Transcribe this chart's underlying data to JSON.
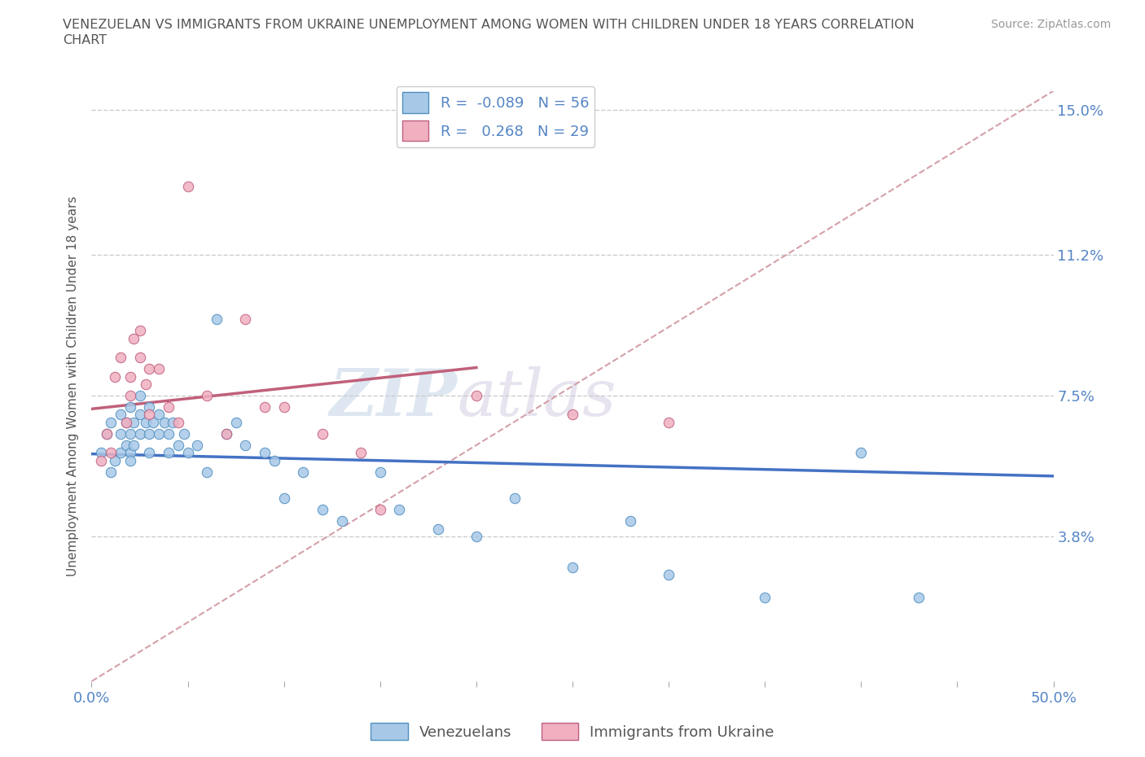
{
  "title_line1": "VENEZUELAN VS IMMIGRANTS FROM UKRAINE UNEMPLOYMENT AMONG WOMEN WITH CHILDREN UNDER 18 YEARS CORRELATION",
  "title_line2": "CHART",
  "source": "Source: ZipAtlas.com",
  "ylabel": "Unemployment Among Women with Children Under 18 years",
  "xlim": [
    0.0,
    0.5
  ],
  "ylim": [
    0.0,
    0.155
  ],
  "xticks": [
    0.0,
    0.05,
    0.1,
    0.15,
    0.2,
    0.25,
    0.3,
    0.35,
    0.4,
    0.45,
    0.5
  ],
  "xticklabels": [
    "0.0%",
    "",
    "",
    "",
    "",
    "",
    "",
    "",
    "",
    "",
    "50.0%"
  ],
  "yticks": [
    0.038,
    0.075,
    0.112,
    0.15
  ],
  "yticklabels": [
    "3.8%",
    "7.5%",
    "11.2%",
    "15.0%"
  ],
  "venezuelan_line_color": "#4472c4",
  "ukraine_line_color": "#c0607a",
  "diagonal_line_color": "#d4a0a8",
  "venezuelan_scatter_face": "#a8c8e8",
  "venezuelan_scatter_edge": "#5090c0",
  "ukraine_scatter_face": "#f0b0c0",
  "ukraine_scatter_edge": "#c06080",
  "R_venezuelan": -0.089,
  "N_venezuelan": 56,
  "R_ukraine": 0.268,
  "N_ukraine": 29,
  "watermark_zip": "ZIP",
  "watermark_atlas": "atlas",
  "background_color": "#ffffff",
  "grid_color": "#cccccc",
  "legend_label_1": "Venezuelans",
  "legend_label_2": "Immigrants from Ukraine",
  "venezuelan_x": [
    0.005,
    0.008,
    0.01,
    0.01,
    0.012,
    0.015,
    0.015,
    0.015,
    0.018,
    0.018,
    0.02,
    0.02,
    0.02,
    0.02,
    0.022,
    0.022,
    0.025,
    0.025,
    0.025,
    0.028,
    0.03,
    0.03,
    0.03,
    0.032,
    0.035,
    0.035,
    0.038,
    0.04,
    0.04,
    0.042,
    0.045,
    0.048,
    0.05,
    0.055,
    0.06,
    0.065,
    0.07,
    0.075,
    0.08,
    0.09,
    0.095,
    0.1,
    0.11,
    0.12,
    0.13,
    0.15,
    0.16,
    0.18,
    0.2,
    0.22,
    0.25,
    0.28,
    0.3,
    0.35,
    0.4,
    0.43
  ],
  "venezuelan_y": [
    0.06,
    0.065,
    0.068,
    0.055,
    0.058,
    0.065,
    0.06,
    0.07,
    0.062,
    0.068,
    0.065,
    0.06,
    0.072,
    0.058,
    0.068,
    0.062,
    0.07,
    0.065,
    0.075,
    0.068,
    0.065,
    0.06,
    0.072,
    0.068,
    0.07,
    0.065,
    0.068,
    0.065,
    0.06,
    0.068,
    0.062,
    0.065,
    0.06,
    0.062,
    0.055,
    0.095,
    0.065,
    0.068,
    0.062,
    0.06,
    0.058,
    0.048,
    0.055,
    0.045,
    0.042,
    0.055,
    0.045,
    0.04,
    0.038,
    0.048,
    0.03,
    0.042,
    0.028,
    0.022,
    0.06,
    0.022
  ],
  "ukraine_x": [
    0.005,
    0.008,
    0.01,
    0.012,
    0.015,
    0.018,
    0.02,
    0.02,
    0.022,
    0.025,
    0.025,
    0.028,
    0.03,
    0.03,
    0.035,
    0.04,
    0.045,
    0.05,
    0.06,
    0.07,
    0.08,
    0.09,
    0.1,
    0.12,
    0.14,
    0.15,
    0.2,
    0.25,
    0.3
  ],
  "ukraine_y": [
    0.058,
    0.065,
    0.06,
    0.08,
    0.085,
    0.068,
    0.075,
    0.08,
    0.09,
    0.085,
    0.092,
    0.078,
    0.07,
    0.082,
    0.082,
    0.072,
    0.068,
    0.13,
    0.075,
    0.065,
    0.095,
    0.072,
    0.072,
    0.065,
    0.06,
    0.045,
    0.075,
    0.07,
    0.068
  ]
}
